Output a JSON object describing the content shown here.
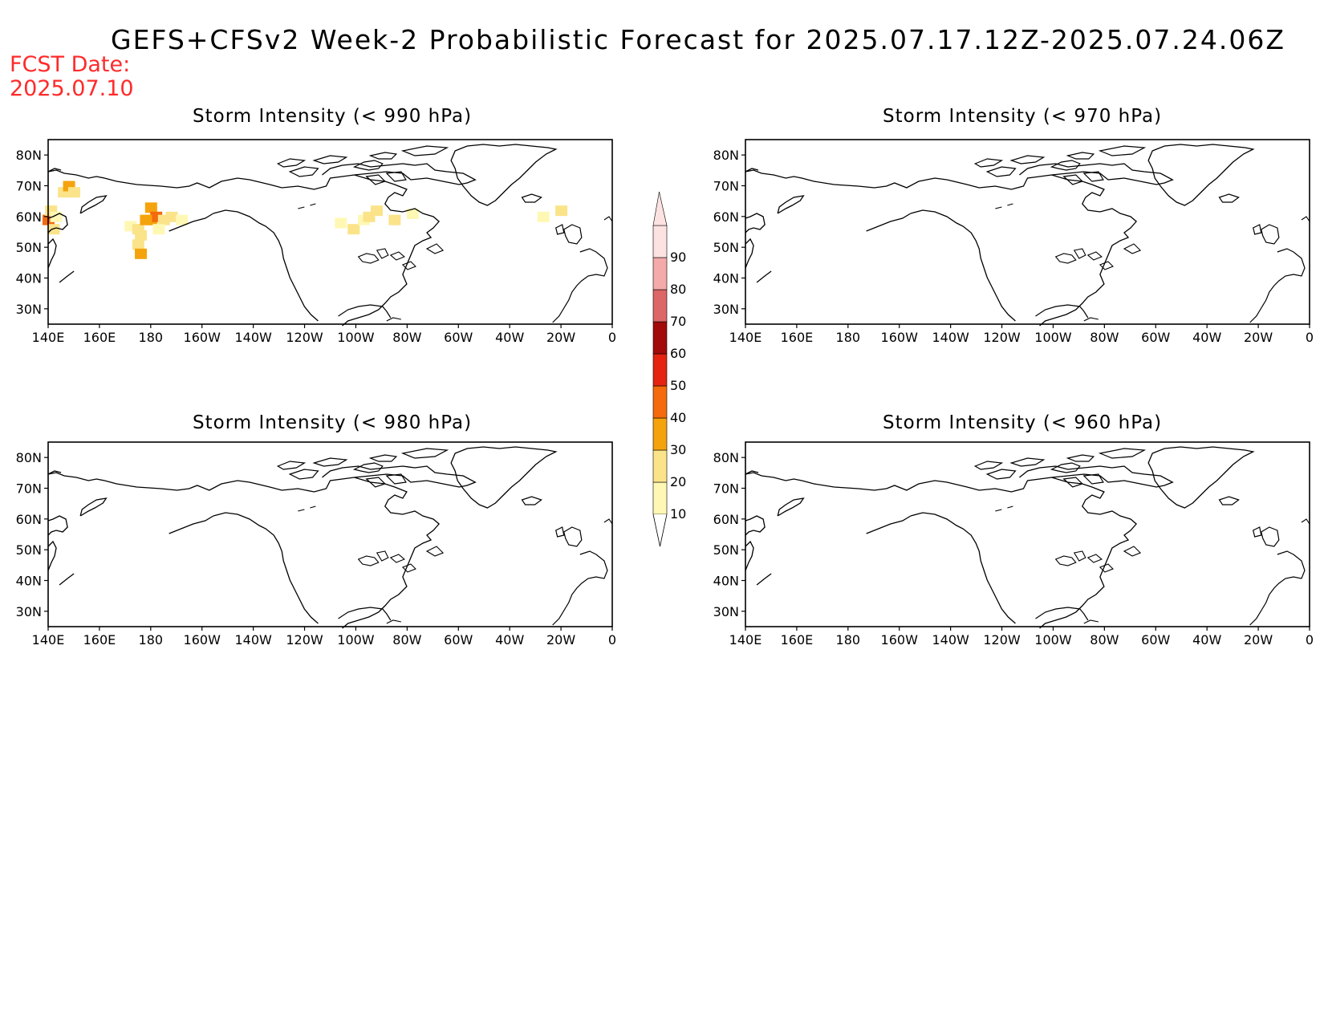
{
  "title": "GEFS+CFSv2 Week-2 Probabilistic Forecast for 2025.07.17.12Z-2025.07.24.06Z",
  "fcst_date": {
    "label": "FCST Date:",
    "value": "2025.07.10"
  },
  "lon_ticks": [
    "140E",
    "160E",
    "180",
    "160W",
    "140W",
    "120W",
    "100W",
    "80W",
    "60W",
    "40W",
    "20W",
    "0"
  ],
  "lat_ticks": [
    "80N",
    "70N",
    "60N",
    "50N",
    "40N",
    "30N"
  ],
  "colors": {
    "levels": [
      {
        "value": "10",
        "color": "#fff8b4"
      },
      {
        "value": "20",
        "color": "#fbe38a"
      },
      {
        "value": "30",
        "color": "#f5a30c"
      },
      {
        "value": "40",
        "color": "#f46a0c"
      },
      {
        "value": "50",
        "color": "#e42310"
      },
      {
        "value": "60",
        "color": "#a30a0a"
      },
      {
        "value": "70",
        "color": "#dd6666"
      },
      {
        "value": "80",
        "color": "#f4aaaa"
      },
      {
        "value": "90",
        "color": "#fde2e2"
      }
    ],
    "coast": "#000000"
  },
  "panels": [
    {
      "title": "Storm Intensity (< 990 hPa)"
    },
    {
      "title": "Storm Intensity (< 970 hPa)"
    },
    {
      "title": "Storm Intensity (< 980 hPa)"
    },
    {
      "title": "Storm Intensity (< 960 hPa)"
    }
  ],
  "probability_patches": [
    {
      "lon": 140,
      "lat": 59,
      "prob": 40
    },
    {
      "lon": 141,
      "lat": 62,
      "prob": 20
    },
    {
      "lon": 142,
      "lat": 56,
      "prob": 20
    },
    {
      "lon": 143,
      "lat": 60,
      "prob": 10
    },
    {
      "lon": 146,
      "lat": 68,
      "prob": 20
    },
    {
      "lon": 148,
      "lat": 70,
      "prob": 30
    },
    {
      "lon": 150,
      "lat": 68,
      "prob": 20
    },
    {
      "lon": 172,
      "lat": 57,
      "prob": 10
    },
    {
      "lon": 175,
      "lat": 56,
      "prob": 20
    },
    {
      "lon": 176,
      "lat": 54,
      "prob": 20
    },
    {
      "lon": 175,
      "lat": 51,
      "prob": 20
    },
    {
      "lon": 176,
      "lat": 48,
      "prob": 30
    },
    {
      "lon": 180,
      "lat": 63,
      "prob": 30
    },
    {
      "lon": 180,
      "lat": 59,
      "prob": 30
    },
    {
      "lon": 182,
      "lat": 60,
      "prob": 40
    },
    {
      "lon": 178,
      "lat": 59,
      "prob": 30
    },
    {
      "lon": 185,
      "lat": 59,
      "prob": 20
    },
    {
      "lon": 188,
      "lat": 60,
      "prob": 20
    },
    {
      "lon": 192,
      "lat": 59,
      "prob": 10
    },
    {
      "lon": 183,
      "lat": 56,
      "prob": 10
    },
    {
      "lon": 254,
      "lat": 58,
      "prob": 10
    },
    {
      "lon": 259,
      "lat": 56,
      "prob": 20
    },
    {
      "lon": 263,
      "lat": 59,
      "prob": 10
    },
    {
      "lon": 265,
      "lat": 60,
      "prob": 20
    },
    {
      "lon": 268,
      "lat": 62,
      "prob": 20
    },
    {
      "lon": 275,
      "lat": 59,
      "prob": 20
    },
    {
      "lon": 282,
      "lat": 61,
      "prob": 10
    },
    {
      "lon": 340,
      "lat": 62,
      "prob": 20
    },
    {
      "lon": 333,
      "lat": 60,
      "prob": 10
    }
  ]
}
